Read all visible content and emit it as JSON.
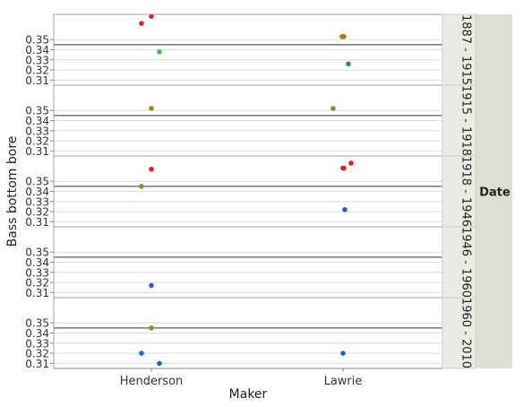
{
  "chart_data": {
    "type": "scatter",
    "xlabel": "Maker",
    "ylabel": "Bass bottom bore",
    "categories": [
      "Henderson",
      "Lawrie"
    ],
    "group_by_title": "Date",
    "yticks": [
      0.31,
      0.32,
      0.33,
      0.34,
      0.35
    ],
    "panels": [
      {
        "label": "1887 - 1915",
        "ylim": [
          0.305,
          0.375
        ],
        "ref_line": 0.345,
        "points": [
          {
            "x": "Henderson",
            "y": 0.373,
            "color": "#e02020"
          },
          {
            "x": "Henderson",
            "y": 0.366,
            "color": "#e02020"
          },
          {
            "x": "Henderson",
            "y": 0.338,
            "color": "#3cc050"
          },
          {
            "x": "Lawrie",
            "y": 0.353,
            "color": "#a08020"
          },
          {
            "x": "Lawrie",
            "y": 0.353,
            "color": "#a08020"
          },
          {
            "x": "Lawrie",
            "y": 0.353,
            "color": "#a08020"
          },
          {
            "x": "Lawrie",
            "y": 0.326,
            "color": "#2080c0"
          }
        ]
      },
      {
        "label": "1915 - 1918",
        "ylim": [
          0.305,
          0.375
        ],
        "ref_line": 0.345,
        "points": [
          {
            "x": "Henderson",
            "y": 0.352,
            "color": "#a08020"
          },
          {
            "x": "Lawrie",
            "y": 0.352,
            "color": "#a08020"
          }
        ]
      },
      {
        "label": "1918 - 1946",
        "ylim": [
          0.305,
          0.375
        ],
        "ref_line": 0.345,
        "points": [
          {
            "x": "Henderson",
            "y": 0.362,
            "color": "#e02020"
          },
          {
            "x": "Henderson",
            "y": 0.345,
            "color": "#70a020"
          },
          {
            "x": "Lawrie",
            "y": 0.368,
            "color": "#e02020"
          },
          {
            "x": "Lawrie",
            "y": 0.363,
            "color": "#e02020"
          },
          {
            "x": "Lawrie",
            "y": 0.363,
            "color": "#e02020"
          },
          {
            "x": "Lawrie",
            "y": 0.322,
            "color": "#2060c0"
          }
        ]
      },
      {
        "label": "1946 - 1960",
        "ylim": [
          0.305,
          0.375
        ],
        "ref_line": 0.345,
        "points": [
          {
            "x": "Henderson",
            "y": 0.317,
            "color": "#2060d0"
          }
        ]
      },
      {
        "label": "1960 - 2010",
        "ylim": [
          0.305,
          0.375
        ],
        "ref_line": 0.345,
        "points": [
          {
            "x": "Henderson",
            "y": 0.345,
            "color": "#70a020"
          },
          {
            "x": "Henderson",
            "y": 0.32,
            "color": "#2060d0"
          },
          {
            "x": "Henderson",
            "y": 0.31,
            "color": "#2060d0"
          },
          {
            "x": "Lawrie",
            "y": 0.32,
            "color": "#2060d0"
          }
        ]
      }
    ],
    "colors": {
      "frame": "#a0a0a0",
      "gridline": "#dcdcdc",
      "ref_line": "#808080",
      "strip_bg": "#ebebe3",
      "group_bg": "#deded2"
    }
  }
}
